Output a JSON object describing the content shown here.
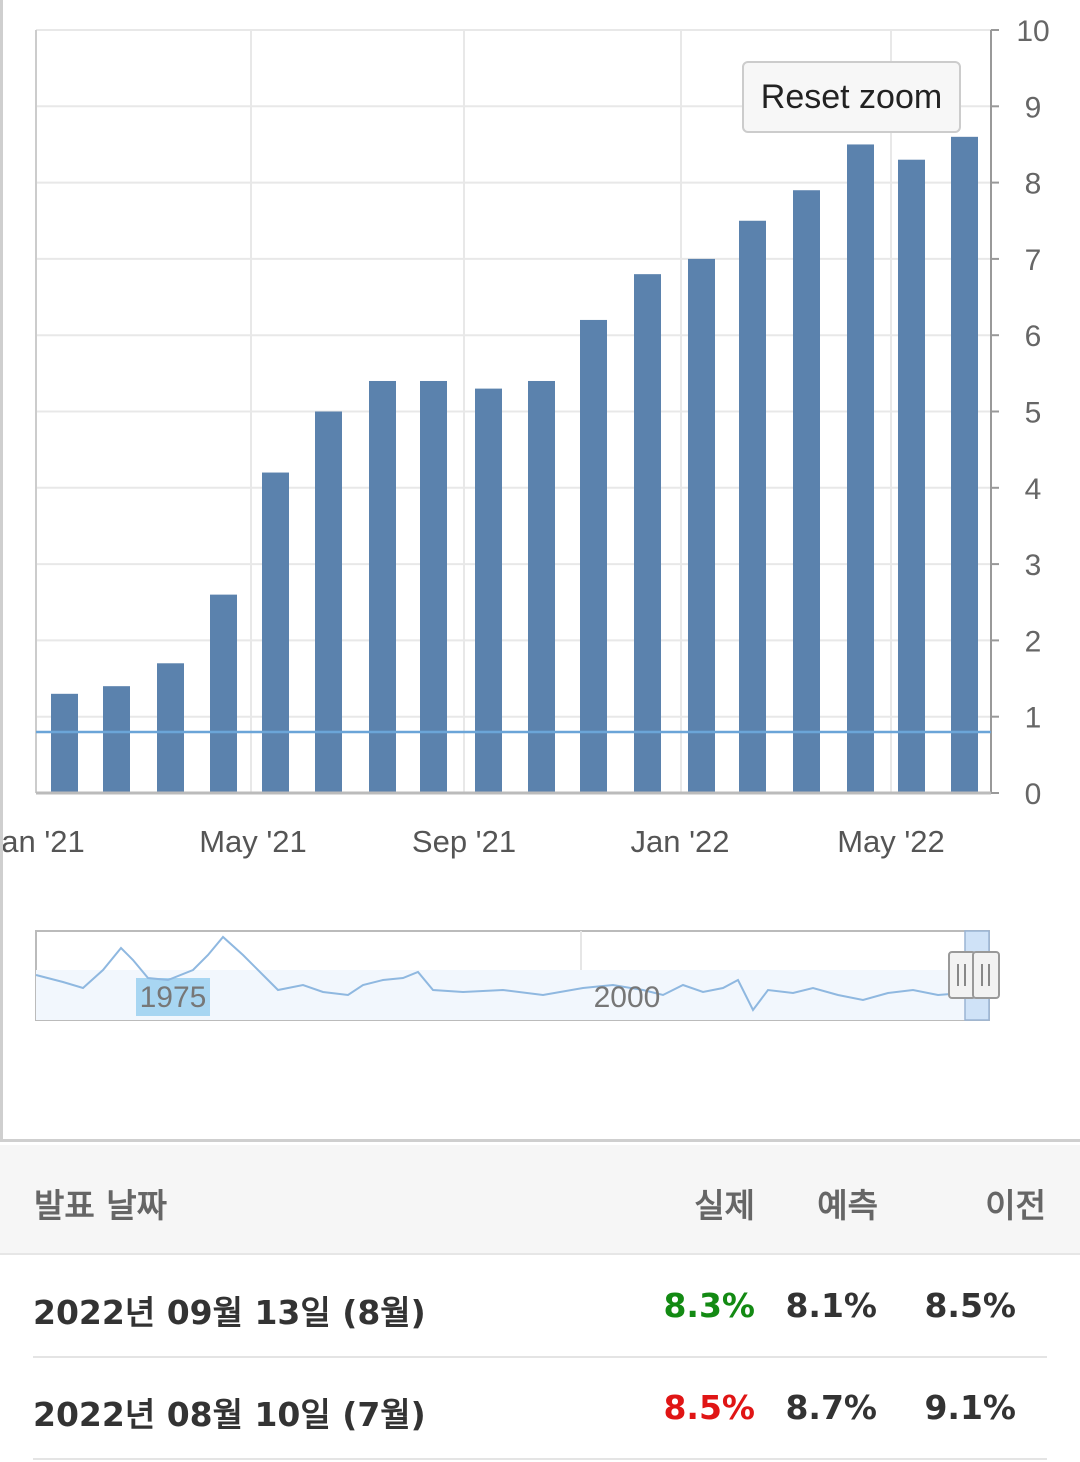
{
  "chart_data": {
    "type": "bar",
    "bars": [
      1.3,
      1.4,
      1.7,
      2.6,
      4.2,
      5.0,
      5.4,
      5.4,
      5.3,
      5.4,
      6.2,
      6.8,
      7.0,
      7.5,
      7.9,
      8.5,
      8.3,
      8.6
    ],
    "x_tick_labels": [
      "an '21",
      "May '21",
      "Sep '21",
      "Jan '22",
      "May '22"
    ],
    "y_ticks": [
      "0",
      "1",
      "2",
      "3",
      "4",
      "5",
      "6",
      "7",
      "8",
      "9",
      "10"
    ],
    "ylim": [
      0,
      10
    ],
    "reference_line": 0.8,
    "bar_color": "#5b82ad",
    "grid": true
  },
  "navigator": {
    "labels": [
      "1975",
      "2000"
    ]
  },
  "reset_zoom_label": "Reset zoom",
  "table": {
    "headers": {
      "date": "발표 날짜",
      "actual": "실제",
      "forecast": "예측",
      "previous": "이전"
    },
    "rows": [
      {
        "date": "2022년 09월 13일 (8월)",
        "actual": "8.3%",
        "actual_color": "#138a13",
        "forecast": "8.1%",
        "previous": "8.5%"
      },
      {
        "date": "2022년 08월 10일 (7월)",
        "actual": "8.5%",
        "actual_color": "#e01515",
        "forecast": "8.7%",
        "previous": "9.1%"
      }
    ]
  }
}
